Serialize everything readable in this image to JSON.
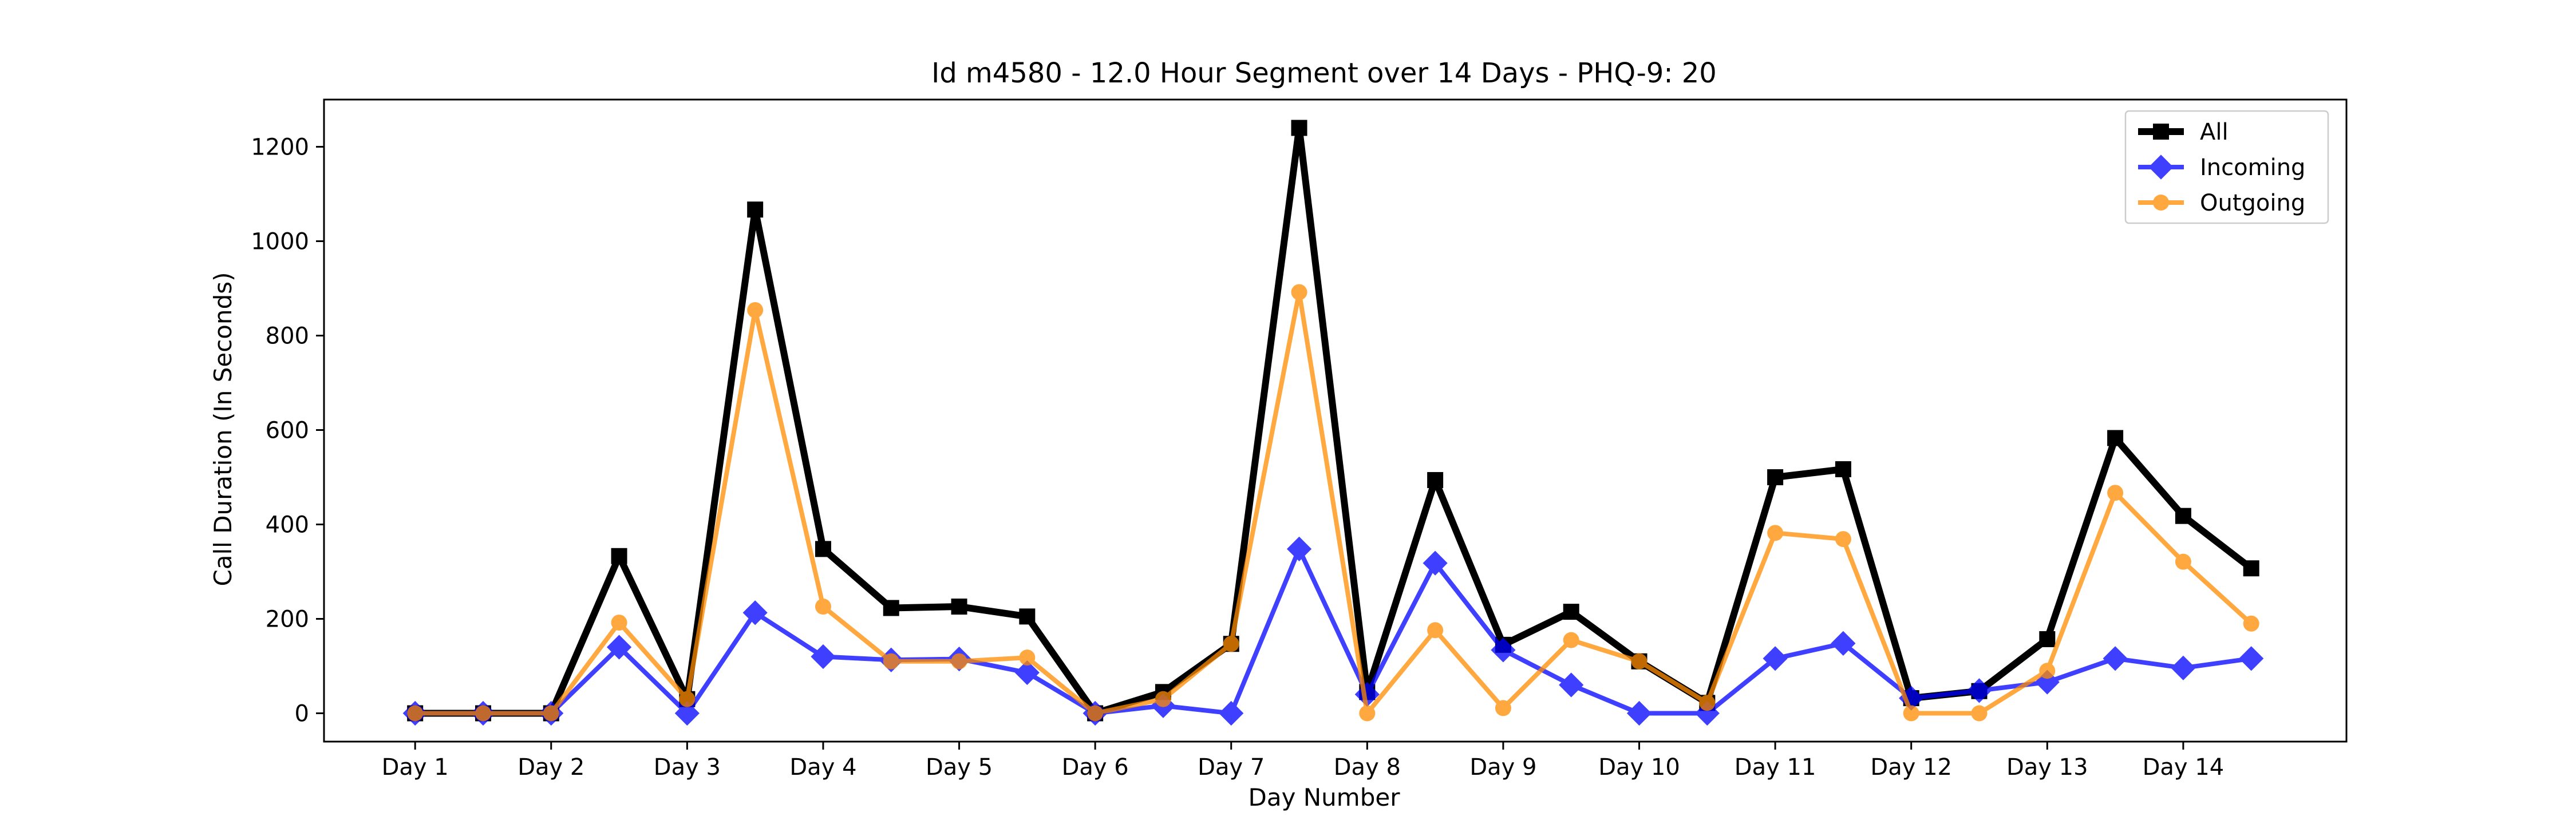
{
  "chart_data": {
    "type": "line",
    "title": "Id m4580 - 12.0 Hour Segment over 14 Days - PHQ-9: 20",
    "xlabel": "Day Number",
    "ylabel": "Call Duration (In Seconds)",
    "x": [
      1,
      1.5,
      2,
      2.5,
      3,
      3.5,
      4,
      4.5,
      5,
      5.5,
      6,
      6.5,
      7,
      7.5,
      8,
      8.5,
      9,
      9.5,
      10,
      10.5,
      11,
      11.5,
      12,
      12.5,
      13,
      13.5,
      14,
      14.5
    ],
    "xticks": [
      1,
      2,
      3,
      4,
      5,
      6,
      7,
      8,
      9,
      10,
      11,
      12,
      13,
      14
    ],
    "xtick_labels": [
      "Day 1",
      "Day 2",
      "Day 3",
      "Day 4",
      "Day 5",
      "Day 6",
      "Day 7",
      "Day 8",
      "Day 9",
      "Day 10",
      "Day 11",
      "Day 12",
      "Day 13",
      "Day 14"
    ],
    "xlim": [
      0.33,
      15.2
    ],
    "yticks": [
      0,
      200,
      400,
      600,
      800,
      1000,
      1200
    ],
    "ylim": [
      -60,
      1300
    ],
    "grid": false,
    "legend_position": "top-right",
    "series": [
      {
        "name": "All",
        "color": "#000000",
        "marker": "square",
        "values": [
          0,
          0,
          0,
          333,
          30,
          1067,
          348,
          223,
          226,
          205,
          0,
          45,
          147,
          1240,
          45,
          494,
          145,
          215,
          110,
          22,
          500,
          517,
          32,
          47,
          157,
          583,
          418,
          307
        ]
      },
      {
        "name": "Incoming",
        "color": "#0000ff",
        "marker": "diamond",
        "values": [
          0,
          0,
          0,
          140,
          0,
          213,
          120,
          113,
          115,
          86,
          0,
          16,
          0,
          348,
          40,
          318,
          134,
          60,
          0,
          0,
          116,
          148,
          32,
          48,
          66,
          116,
          96,
          116
        ]
      },
      {
        "name": "Outgoing",
        "color": "#ff8c00",
        "marker": "circle",
        "values": [
          0,
          0,
          0,
          192,
          30,
          854,
          226,
          110,
          110,
          118,
          0,
          30,
          147,
          892,
          0,
          176,
          11,
          155,
          110,
          22,
          382,
          369,
          0,
          0,
          90,
          467,
          321,
          190
        ]
      }
    ]
  }
}
